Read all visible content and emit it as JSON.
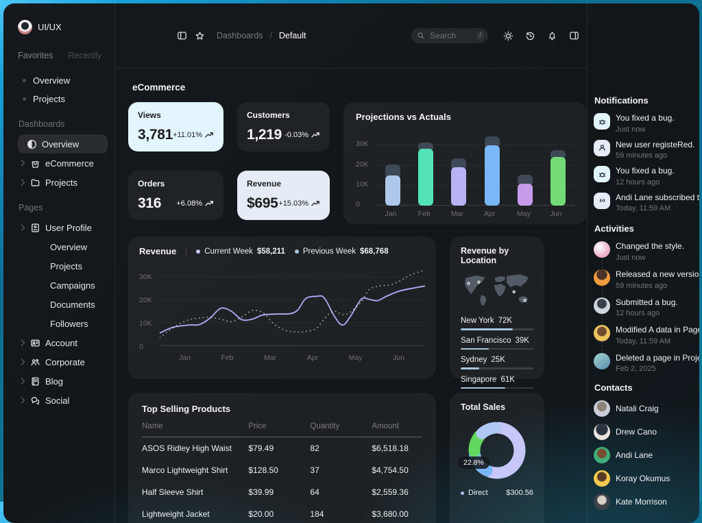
{
  "header": {
    "breadcrumb": {
      "section": "Dashboards",
      "separator": "/",
      "current": "Default"
    },
    "search": {
      "placeholder": "Search",
      "shortcut_key": "/"
    },
    "icon_names": [
      "panel-left-icon",
      "star-icon",
      "sun-icon",
      "history-icon",
      "bell-icon",
      "panel-right-icon"
    ]
  },
  "sidebar": {
    "workspace": "UI/UX",
    "tabs": [
      {
        "label": "Favorites"
      },
      {
        "label": "Recently"
      }
    ],
    "favorites": [
      {
        "label": "Overview"
      },
      {
        "label": "Projects"
      }
    ],
    "dashboards": {
      "title": "Dashboards",
      "items": [
        {
          "label": "Overview"
        },
        {
          "label": "eCommerce"
        },
        {
          "label": "Projects"
        }
      ]
    },
    "pages": {
      "title": "Pages",
      "user_profile": {
        "label": "User Profile"
      },
      "user_profile_children": [
        {
          "label": "Overview"
        },
        {
          "label": "Projects"
        },
        {
          "label": "Campaigns"
        },
        {
          "label": "Documents"
        },
        {
          "label": "Followers"
        }
      ],
      "items": [
        {
          "label": "Account"
        },
        {
          "label": "Corporate"
        },
        {
          "label": "Blog"
        },
        {
          "label": "Social"
        }
      ]
    }
  },
  "main": {
    "title": "eCommerce",
    "stats": [
      {
        "label": "Views",
        "value": "3,781",
        "delta": "+11.01%"
      },
      {
        "label": "Customers",
        "value": "1,219",
        "delta": "-0.03%"
      },
      {
        "label": "Orders",
        "value": "316",
        "delta": "+6.08%"
      },
      {
        "label": "Revenue",
        "value": "$695",
        "delta": "+15.03%"
      }
    ],
    "products": {
      "title": "Top Selling Products",
      "headers": [
        "Name",
        "Price",
        "Quantity",
        "Amount"
      ],
      "rows": [
        [
          "ASOS Ridley High Waist",
          "$79.49",
          "82",
          "$6,518.18"
        ],
        [
          "Marco Lightweight Shirt",
          "$128.50",
          "37",
          "$4,754.50"
        ],
        [
          "Half Sleeve  Shirt",
          "$39.99",
          "64",
          "$2,559.36"
        ],
        [
          "Lightweight Jacket",
          "$20.00",
          "184",
          "$3,680.00"
        ]
      ]
    }
  },
  "right_panel": {
    "notifications": {
      "title": "Notifications",
      "items": [
        {
          "text": "You fixed a bug.",
          "time": "Just now",
          "icon": "bug-icon"
        },
        {
          "text": "New user registeRed.",
          "time": "59 minutes ago",
          "icon": "user-icon"
        },
        {
          "text": "You fixed a bug.",
          "time": "12 hours ago",
          "icon": "bug-icon"
        },
        {
          "text": "Andi Lane subscribed to you.",
          "time": "Today, 11:59 AM",
          "icon": "broadcast-icon"
        }
      ]
    },
    "activities": {
      "title": "Activities",
      "items": [
        {
          "text": "Changed the style.",
          "time": "Just now"
        },
        {
          "text": "Released a new version.",
          "time": "59 minutes ago"
        },
        {
          "text": "Submitted a bug.",
          "time": "12 hours ago"
        },
        {
          "text": "Modified A data in Page X",
          "time": "Today, 11:59 AM"
        },
        {
          "text": "Deleted a page in Project X",
          "time": "Feb 2, 2025"
        }
      ]
    },
    "contacts": {
      "title": "Contacts",
      "names": [
        {
          "name": "Natali Craig"
        },
        {
          "name": "Drew Cano"
        },
        {
          "name": "Andi Lane"
        },
        {
          "name": "Koray Okumus"
        },
        {
          "name": "Kate Morrison"
        }
      ]
    }
  },
  "chart_data": [
    {
      "id": "projections_vs_actuals",
      "type": "bar",
      "title": "Projections vs Actuals",
      "categories": [
        "Jan",
        "Feb",
        "Mar",
        "Apr",
        "May",
        "Jun"
      ],
      "series": [
        {
          "name": "Actuals",
          "values": [
            15,
            28,
            19,
            30,
            11,
            24
          ]
        },
        {
          "name": "Projections",
          "values": [
            20,
            31,
            23,
            34,
            15,
            27
          ]
        }
      ],
      "unit": "K",
      "ylim": [
        0,
        34
      ],
      "yticks": [
        "30K",
        "20K",
        "10K",
        "0"
      ],
      "grid": true,
      "actual_colors": [
        "#ADC8EA",
        "#54E2B7",
        "#B9B3F4",
        "#79B7F9",
        "#C79BEA",
        "#74DB77"
      ],
      "projection_color": "#3E4856"
    },
    {
      "id": "revenue",
      "type": "line",
      "title": "Revenue",
      "legend": [
        {
          "label": "Current Week",
          "value": "$58,211",
          "dot": "#C6C7F8"
        },
        {
          "label": "Previous Week",
          "value": "$68,768",
          "dot": "#A8C5DA"
        }
      ],
      "x_labels": [
        "Jan",
        "Feb",
        "Mar",
        "Apr",
        "May",
        "Jun"
      ],
      "yticks": [
        "30K",
        "20K",
        "10K",
        "0"
      ],
      "ylim": [
        0,
        34
      ],
      "unit": "K",
      "series": [
        {
          "name": "Current Week",
          "style": "solid",
          "color": "#A8ABF0",
          "points": [
            [
              0,
              5.5
            ],
            [
              5,
              8
            ],
            [
              11,
              9
            ],
            [
              15,
              9.2
            ],
            [
              19,
              12
            ],
            [
              23,
              16.3
            ],
            [
              27,
              15
            ],
            [
              31,
              11.3
            ],
            [
              35,
              11.6
            ],
            [
              39,
              13.4
            ],
            [
              45,
              13.8
            ],
            [
              49,
              13.9
            ],
            [
              52,
              15.5
            ],
            [
              55,
              20.5
            ],
            [
              59,
              21.5
            ],
            [
              62,
              20.8
            ],
            [
              66,
              12.5
            ],
            [
              69,
              9
            ],
            [
              72,
              13
            ],
            [
              76,
              20.3
            ],
            [
              79,
              20.2
            ],
            [
              82,
              19.6
            ],
            [
              86,
              21.8
            ],
            [
              91,
              24
            ],
            [
              100,
              26
            ]
          ]
        },
        {
          "name": "Previous Week",
          "style": "dotted",
          "color": "#E3E8EF",
          "points": [
            [
              0,
              3.5
            ],
            [
              6,
              8.5
            ],
            [
              11,
              11.3
            ],
            [
              15,
              12
            ],
            [
              19,
              12.3
            ],
            [
              23,
              11.5
            ],
            [
              27,
              10.5
            ],
            [
              31,
              12.5
            ],
            [
              35,
              15.3
            ],
            [
              39,
              14.3
            ],
            [
              43,
              9.5
            ],
            [
              47,
              6.8
            ],
            [
              51,
              6
            ],
            [
              55,
              6.2
            ],
            [
              59,
              7.5
            ],
            [
              63,
              13
            ],
            [
              66,
              15
            ],
            [
              69,
              13.5
            ],
            [
              72,
              14.8
            ],
            [
              76,
              19
            ],
            [
              79,
              24.5
            ],
            [
              83,
              26
            ],
            [
              87,
              26.5
            ],
            [
              91,
              28.5
            ],
            [
              95,
              31
            ],
            [
              100,
              33
            ]
          ]
        }
      ]
    },
    {
      "id": "revenue_by_location",
      "type": "bar-list",
      "title": "Revenue by Location",
      "bar_color": "#A8C5DA",
      "scale_max": 100,
      "items": [
        {
          "city": "New York",
          "value": "72K",
          "pct": 72
        },
        {
          "city": "San Francisco",
          "value": "39K",
          "pct": 39
        },
        {
          "city": "Sydney",
          "value": "25K",
          "pct": 25
        },
        {
          "city": "Singapore",
          "value": "61K",
          "pct": 61
        }
      ]
    },
    {
      "id": "total_sales",
      "type": "pie",
      "title": "Total Sales",
      "tooltip": "22.8%",
      "slices": [
        {
          "pct": 56,
          "color": "#C6C7F8"
        },
        {
          "pct": 17,
          "color": "#79B7F9"
        },
        {
          "pct": 14,
          "color": "#62D75F"
        },
        {
          "pct": 13,
          "color": "#B1C9F5"
        }
      ],
      "legend": [
        {
          "label": "Direct",
          "value": "$300.56"
        }
      ]
    }
  ]
}
